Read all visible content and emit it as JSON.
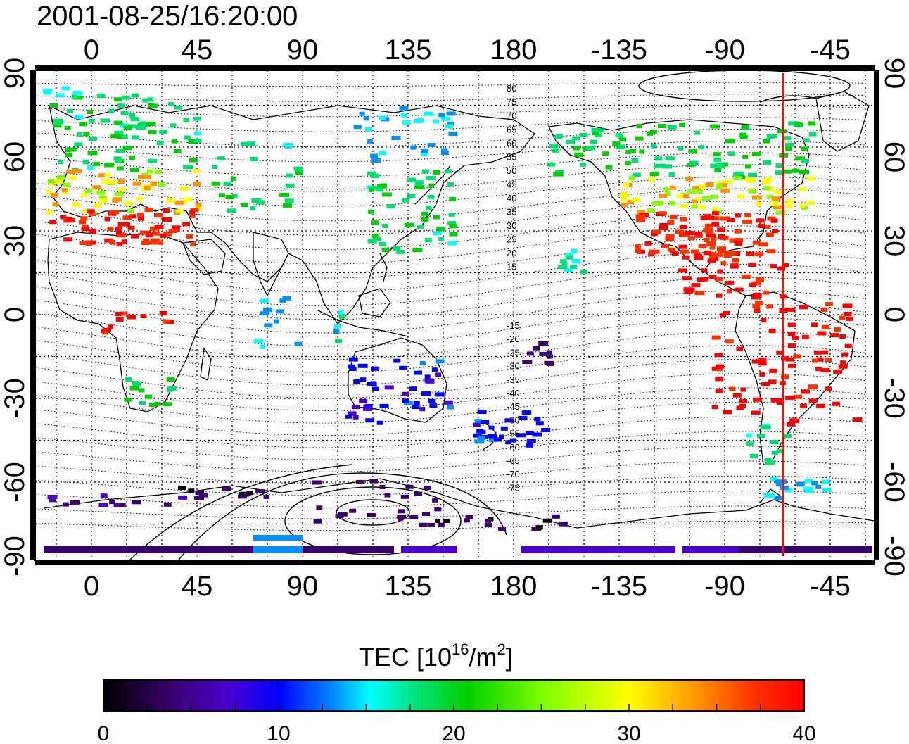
{
  "map": {
    "timestamp": "2001-08-25/16:20:00",
    "top_longitude_ticks": [
      "0",
      "45",
      "90",
      "135",
      "180",
      "-135",
      "-90",
      "-45"
    ],
    "bottom_longitude_ticks": [
      "0",
      "45",
      "90",
      "135",
      "180",
      "-135",
      "-90",
      "-45"
    ],
    "left_latitude_ticks": [
      "90",
      "60",
      "30",
      "0",
      "-30",
      "-60",
      "-90"
    ],
    "right_latitude_ticks": [
      "90",
      "60",
      "30",
      "0",
      "-30",
      "-60",
      "-90"
    ],
    "contour_labels_north": [
      "80",
      "75",
      "70",
      "65",
      "60",
      "55",
      "50",
      "45",
      "40",
      "35",
      "30",
      "25",
      "20",
      "15"
    ],
    "contour_labels_south": [
      "-15",
      "-20",
      "-25",
      "-30",
      "-35",
      "-40",
      "-45",
      "-50",
      "-55",
      "-60",
      "-65",
      "-70",
      "-75"
    ],
    "meridian_marker": {
      "color": "#e8120c",
      "longitude": -65
    }
  },
  "colorbar": {
    "title": "TEC  [10",
    "title_sup1": "16",
    "title_mid": "/m",
    "title_sup2": "2",
    "title_end": "]",
    "labels": [
      "0",
      "10",
      "20",
      "30",
      "40"
    ],
    "min": 0,
    "max": 40,
    "stops": [
      "#000000",
      "#3a0070",
      "#4b00d0",
      "#0000ff",
      "#0090ff",
      "#00ffff",
      "#00e070",
      "#00d000",
      "#80ff00",
      "#ffff00",
      "#ff9000",
      "#ff3000",
      "#ff0000"
    ]
  }
}
